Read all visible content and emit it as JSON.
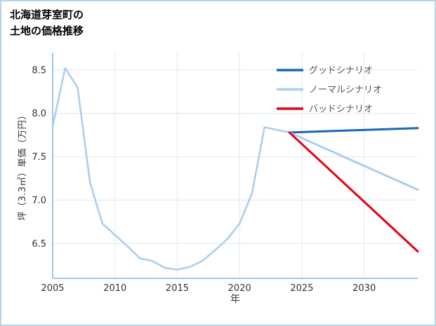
{
  "title": {
    "line1": "北海道芽室町の",
    "line2": "土地の価格推移"
  },
  "chart_data": {
    "type": "line",
    "title": "北海道芽室町の土地の価格推移",
    "xlabel": "年",
    "ylabel": "坪（3.3㎡）単価（万円）",
    "x_range": [
      2005,
      2034.3
    ],
    "y_range": [
      6.1,
      8.7
    ],
    "x_ticks": [
      2005,
      2010,
      2015,
      2020,
      2025,
      2030
    ],
    "y_ticks": [
      6.5,
      7.0,
      7.5,
      8.0,
      8.5
    ],
    "grid": true,
    "legend_position": "top-right",
    "colors": {
      "axis": "#a3c6e8",
      "grid": "#dce9f6",
      "tick_text": "#333333",
      "legend_text": "#555555",
      "page_border": "#b5d3ec"
    },
    "series": [
      {
        "id": "history",
        "legend": false,
        "color": "#a9cdef",
        "width": 2.5,
        "x": [
          2005,
          2006,
          2007,
          2008,
          2009,
          2010,
          2011,
          2012,
          2013,
          2014,
          2015,
          2016,
          2017,
          2018,
          2019,
          2020,
          2021,
          2022,
          2023,
          2024
        ],
        "values": [
          7.85,
          8.52,
          8.3,
          7.2,
          6.73,
          6.6,
          6.47,
          6.33,
          6.3,
          6.22,
          6.2,
          6.23,
          6.3,
          6.42,
          6.55,
          6.73,
          7.08,
          7.84,
          7.81,
          7.78
        ]
      },
      {
        "id": "good",
        "name": "グッドシナリオ",
        "legend": true,
        "color": "#1569b5",
        "width": 3,
        "x": [
          2024,
          2034.3
        ],
        "values": [
          7.78,
          7.83
        ]
      },
      {
        "id": "normal",
        "name": "ノーマルシナリオ",
        "legend": true,
        "color": "#a9cdef",
        "width": 3,
        "x": [
          2024,
          2034.3
        ],
        "values": [
          7.78,
          7.12
        ]
      },
      {
        "id": "bad",
        "name": "バッドシナリオ",
        "legend": true,
        "color": "#e60012",
        "width": 3,
        "x": [
          2024,
          2034.3
        ],
        "values": [
          7.78,
          6.41
        ]
      }
    ]
  }
}
